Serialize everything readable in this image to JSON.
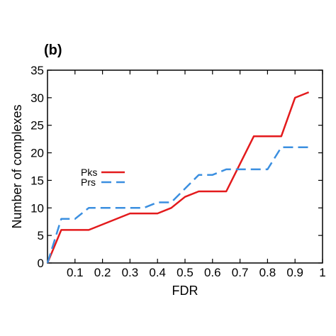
{
  "panel_label": "(b)",
  "chart_data": {
    "type": "line",
    "title": "",
    "xlabel": "FDR",
    "ylabel": "Number of complexes",
    "xlim": [
      0,
      1
    ],
    "ylim": [
      0,
      35
    ],
    "x_ticks": [
      0.1,
      0.2,
      0.3,
      0.4,
      0.5,
      0.6,
      0.7,
      0.8,
      0.9,
      1
    ],
    "x_tick_labels": [
      "0.1",
      "0.2",
      "0.3",
      "0.4",
      "0.5",
      "0.6",
      "0.7",
      "0.8",
      "0.9",
      "1"
    ],
    "y_ticks": [
      0,
      5,
      10,
      15,
      20,
      25,
      30,
      35
    ],
    "y_tick_labels": [
      "0",
      "5",
      "10",
      "15",
      "20",
      "25",
      "30",
      "35"
    ],
    "grid": false,
    "legend_position": "center-left",
    "series": [
      {
        "name": "Pks",
        "color": "#e31a1c",
        "style": "solid",
        "x": [
          0.0,
          0.05,
          0.15,
          0.3,
          0.4,
          0.45,
          0.5,
          0.55,
          0.65,
          0.75,
          0.85,
          0.9,
          0.95
        ],
        "y": [
          0,
          6,
          6,
          9,
          9,
          10,
          12,
          13,
          13,
          23,
          23,
          30,
          31
        ]
      },
      {
        "name": "Prs",
        "color": "#3b8fe0",
        "style": "dashed",
        "x": [
          0.0,
          0.05,
          0.1,
          0.15,
          0.35,
          0.4,
          0.45,
          0.55,
          0.6,
          0.65,
          0.8,
          0.85,
          0.95
        ],
        "y": [
          0,
          8,
          8,
          10,
          10,
          11,
          11,
          16,
          16,
          17,
          17,
          21,
          21
        ]
      }
    ]
  }
}
